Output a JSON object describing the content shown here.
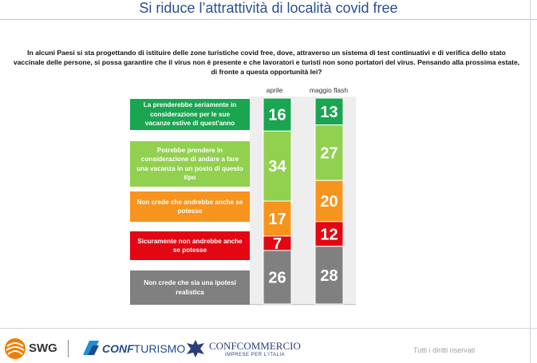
{
  "page": {
    "title": "Si riduce l’attrattività di località covid free",
    "question": "In alcuni Paesi si sta progettando di istituire delle zone turistiche covid free, dove, attraverso un sistema di test continuativi e di verifica dello stato vaccinale delle persone, si possa garantire che il virus non è presente e che lavoratori e turisti  non sono portatori del virus. Pensando alla prossima estate, di fronte a questa opportunità lei?"
  },
  "chart_data": {
    "type": "bar",
    "stacked": true,
    "orientation": "vertical",
    "categories": [
      "aprile",
      "maggio flash"
    ],
    "series": [
      {
        "name": "La prenderebbe seriamente in considerazione per le sue vacanze estive di quest'anno",
        "color": "#1aa551",
        "values": [
          16,
          13
        ]
      },
      {
        "name": "Potrebbe prendere in considerazione di andare a fare una vacanza in un posto di questo tipo",
        "color": "#92d050",
        "values": [
          34,
          27
        ]
      },
      {
        "name": "Non crede che andrebbe anche se potesse",
        "color": "#f7941d",
        "values": [
          17,
          20
        ]
      },
      {
        "name": "Sicuramente non andrebbe anche se potesse",
        "color": "#e30613",
        "values": [
          7,
          12
        ]
      },
      {
        "name": "Non crede che sia una ipotesi realistica",
        "color": "#808080",
        "values": [
          26,
          28
        ]
      }
    ]
  },
  "footer": {
    "swg": "SWG",
    "confturismo_a": "CONF",
    "confturismo_b": "TURISMO",
    "confcommercio": "CONFCOMMERCIO",
    "confcommercio_sub": "IMPRESE PER L'ITALIA",
    "rights": "Tutti i diritti riservati"
  },
  "colors": {
    "title": "#2a4f8f",
    "swg_orange": "#f07d00",
    "conf_blue": "#1f4a8f"
  }
}
